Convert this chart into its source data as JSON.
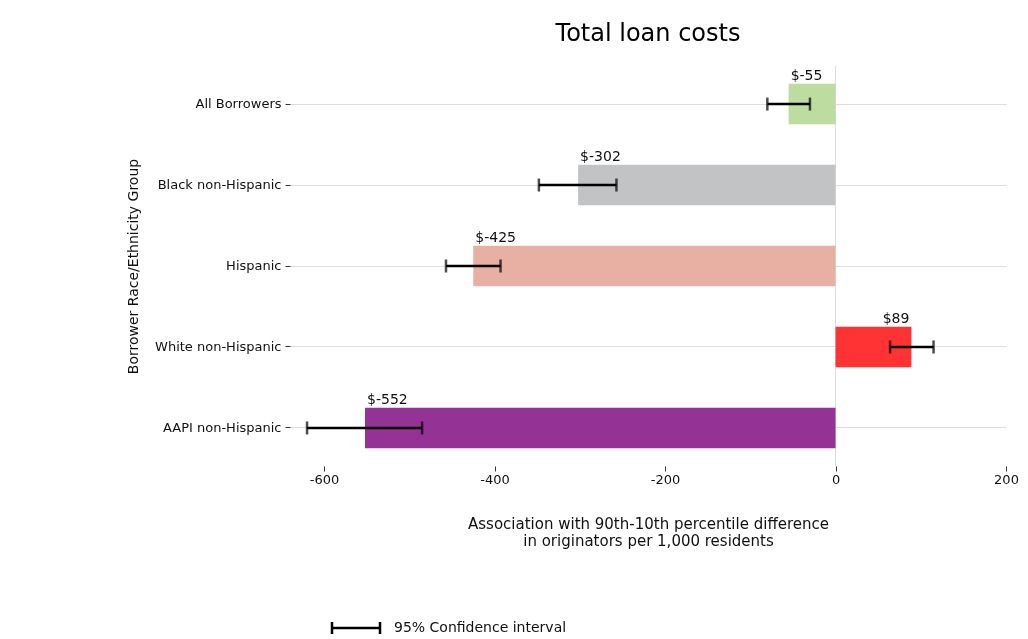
{
  "chart_data": {
    "type": "bar",
    "orientation": "horizontal",
    "title": "Total loan costs",
    "xlabel": "Association with 90th-10th percentile difference\nin originators per 1,000 residents",
    "ylabel": "Borrower Race/Ethnicity Group",
    "categories": [
      "All Borrowers",
      "Black non-Hispanic",
      "Hispanic",
      "White non-Hispanic",
      "AAPI non-Hispanic"
    ],
    "values": [
      -55,
      -302,
      -425,
      89,
      -552
    ],
    "colors": [
      "#bddc9f",
      "#c2c3c5",
      "#e8b0a2",
      "#ff3333",
      "#953295"
    ],
    "errors": [
      [
        -80,
        -30
      ],
      [
        -348,
        -257
      ],
      [
        -457,
        -393
      ],
      [
        64,
        115
      ],
      [
        -620,
        -485
      ]
    ],
    "value_labels": [
      "$-55",
      "$-302",
      "$-425",
      "$89",
      "$-552"
    ],
    "xlim": [
      -640,
      200
    ],
    "xticks": [
      -600,
      -400,
      -200,
      0,
      200
    ],
    "ref_lines": [
      {
        "axis": "x",
        "value": 0,
        "color": "#dddddd"
      }
    ],
    "grid": "y",
    "annotations": [
      "95% Confidence interval"
    ]
  }
}
